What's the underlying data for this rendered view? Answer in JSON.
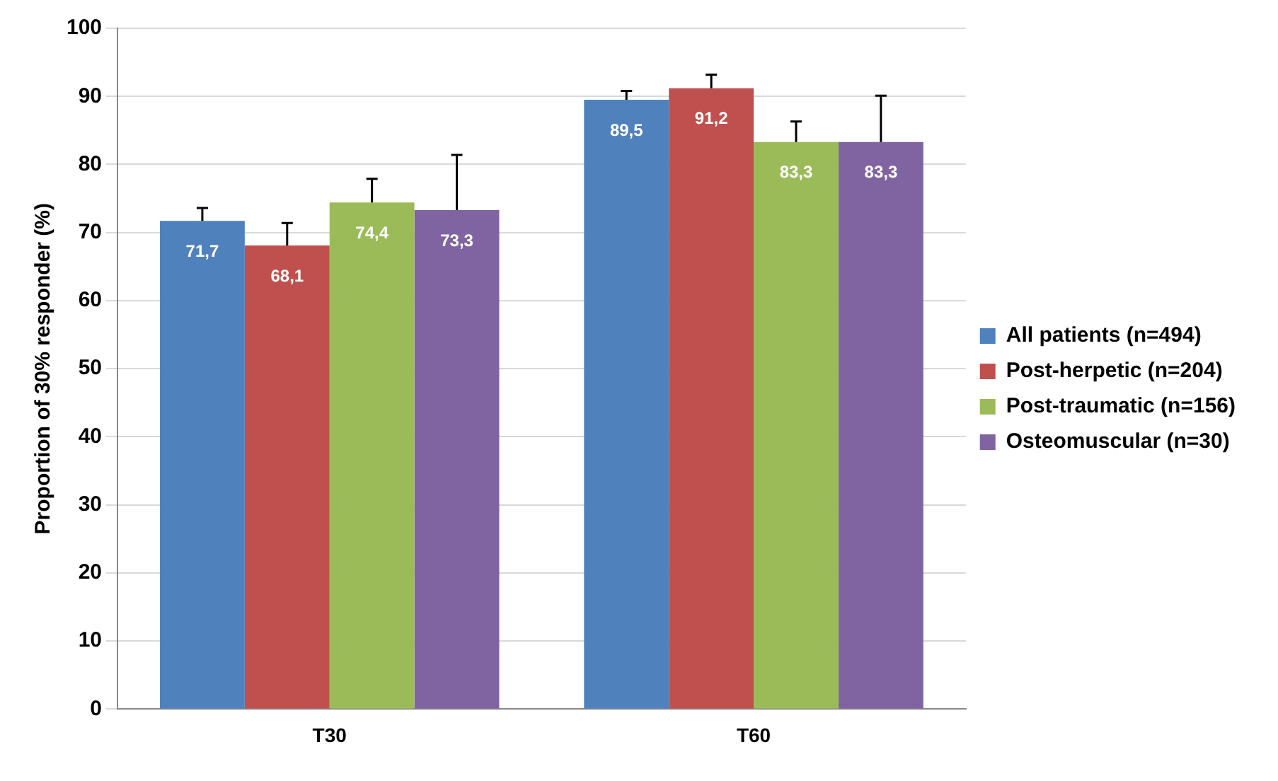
{
  "chart_data": {
    "type": "bar",
    "ylabel": "Proportion of 30% responder (%)",
    "categories": [
      "T30",
      "T60"
    ],
    "ylim": [
      0,
      100
    ],
    "yticks": [
      0,
      10,
      20,
      30,
      40,
      50,
      60,
      70,
      80,
      90,
      100
    ],
    "grid": "y",
    "legend": "right",
    "series": [
      {
        "name": "All patients (n=494)",
        "color": "#4f81bd",
        "values": [
          71.7,
          89.5
        ],
        "value_labels": [
          "71,7",
          "89,5"
        ],
        "errors": [
          [
            71.7,
            73.6
          ],
          [
            89.5,
            90.8
          ]
        ]
      },
      {
        "name": "Post-herpetic (n=204)",
        "color": "#c0504d",
        "values": [
          68.1,
          91.2
        ],
        "value_labels": [
          "68,1",
          "91,2"
        ],
        "errors": [
          [
            68.1,
            71.4
          ],
          [
            91.2,
            93.2
          ]
        ]
      },
      {
        "name": "Post-traumatic (n=156)",
        "color": "#9bbb59",
        "values": [
          74.4,
          83.3
        ],
        "value_labels": [
          "74,4",
          "83,3"
        ],
        "errors": [
          [
            74.4,
            77.9
          ],
          [
            83.3,
            86.3
          ]
        ]
      },
      {
        "name": "Osteomuscular (n=30)",
        "color": "#8064a2",
        "values": [
          73.3,
          83.3
        ],
        "value_labels": [
          "73,3",
          "83,3"
        ],
        "errors": [
          [
            73.3,
            81.4
          ],
          [
            83.3,
            90.1
          ]
        ]
      }
    ]
  }
}
